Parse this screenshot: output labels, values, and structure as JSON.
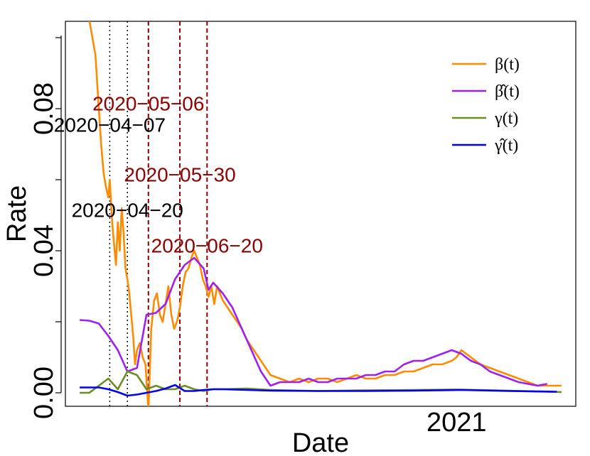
{
  "chart_data": {
    "type": "line",
    "xlabel": "Date",
    "ylabel": "Rate",
    "ylim": [
      0.0,
      0.1
    ],
    "yticks": [
      0.0,
      0.04,
      0.08
    ],
    "ytick_labels": [
      "0.00",
      "0.04",
      "0.08"
    ],
    "xticks": [
      {
        "value": 2020.99,
        "label": "2021"
      }
    ],
    "grid": false,
    "legend_position": "top-right",
    "annotations": [
      {
        "label": "2020−04−07",
        "x": 2020.263,
        "color": "#000000",
        "linestyle": "dotted",
        "text_y": 0.0735
      },
      {
        "label": "2020−04−20",
        "x": 2020.3,
        "color": "#000000",
        "linestyle": "dotted",
        "text_y": 0.0495
      },
      {
        "label": "2020−05−06",
        "x": 2020.344,
        "color": "#8b0000",
        "linestyle": "dashed",
        "text_y": 0.0795
      },
      {
        "label": "2020−05−30",
        "x": 2020.41,
        "color": "#8b0000",
        "linestyle": "dashed",
        "text_y": 0.0595
      },
      {
        "label": "2020−06−20",
        "x": 2020.467,
        "color": "#8b0000",
        "linestyle": "dashed",
        "text_y": 0.0395
      }
    ],
    "series": [
      {
        "name": "β(t)",
        "color": "#ff8c00",
        "x": [
          2020.22,
          2020.233,
          2020.24,
          2020.245,
          2020.25,
          2020.255,
          2020.26,
          2020.263,
          2020.268,
          2020.272,
          2020.276,
          2020.28,
          2020.284,
          2020.288,
          2020.292,
          2020.296,
          2020.3,
          2020.304,
          2020.308,
          2020.312,
          2020.316,
          2020.32,
          2020.326,
          2020.332,
          2020.338,
          2020.344,
          2020.35,
          2020.356,
          2020.362,
          2020.368,
          2020.374,
          2020.38,
          2020.386,
          2020.392,
          2020.398,
          2020.404,
          2020.41,
          2020.416,
          2020.422,
          2020.428,
          2020.434,
          2020.44,
          2020.446,
          2020.452,
          2020.458,
          2020.464,
          2020.47,
          2020.476,
          2020.482,
          2020.488,
          2020.494,
          2020.5,
          2020.51,
          2020.52,
          2020.53,
          2020.54,
          2020.55,
          2020.56,
          2020.57,
          2020.58,
          2020.59,
          2020.6,
          2020.62,
          2020.64,
          2020.66,
          2020.68,
          2020.7,
          2020.72,
          2020.74,
          2020.76,
          2020.78,
          2020.8,
          2020.82,
          2020.84,
          2020.86,
          2020.88,
          2020.9,
          2020.92,
          2020.94,
          2020.96,
          2020.98,
          2020.99,
          2021.0,
          2021.02,
          2021.04,
          2021.06,
          2021.08,
          2021.1,
          2021.12,
          2021.14,
          2021.16,
          2021.18,
          2021.21
        ],
        "values": [
          0.105,
          0.095,
          0.08,
          0.07,
          0.062,
          0.058,
          0.055,
          0.06,
          0.048,
          0.042,
          0.036,
          0.048,
          0.04,
          0.052,
          0.045,
          0.035,
          0.032,
          0.028,
          0.022,
          0.016,
          0.008,
          0.012,
          0.014,
          0.01,
          0.008,
          -0.005,
          0.018,
          0.026,
          0.028,
          0.022,
          0.02,
          0.025,
          0.03,
          0.022,
          0.018,
          0.02,
          0.024,
          0.03,
          0.034,
          0.035,
          0.038,
          0.04,
          0.038,
          0.036,
          0.032,
          0.03,
          0.027,
          0.03,
          0.025,
          0.03,
          0.028,
          0.026,
          0.024,
          0.022,
          0.02,
          0.018,
          0.015,
          0.013,
          0.011,
          0.009,
          0.007,
          0.005,
          0.004,
          0.003,
          0.004,
          0.003,
          0.004,
          0.004,
          0.003,
          0.004,
          0.005,
          0.004,
          0.004,
          0.005,
          0.005,
          0.006,
          0.006,
          0.007,
          0.008,
          0.008,
          0.009,
          0.01,
          0.012,
          0.01,
          0.008,
          0.007,
          0.006,
          0.005,
          0.004,
          0.003,
          0.002,
          0.002,
          0.002
        ]
      },
      {
        "name": "β̂(t)",
        "color": "#a020f0",
        "x": [
          2020.2,
          2020.22,
          2020.24,
          2020.26,
          2020.28,
          2020.3,
          2020.32,
          2020.34,
          2020.36,
          2020.38,
          2020.4,
          2020.42,
          2020.44,
          2020.46,
          2020.47,
          2020.48,
          2020.5,
          2020.52,
          2020.54,
          2020.56,
          2020.58,
          2020.6,
          2020.62,
          2020.64,
          2020.66,
          2020.68,
          2020.7,
          2020.72,
          2020.74,
          2020.76,
          2020.78,
          2020.8,
          2020.82,
          2020.84,
          2020.86,
          2020.88,
          2020.9,
          2020.92,
          2020.94,
          2020.96,
          2020.98,
          2021.0,
          2021.02,
          2021.04,
          2021.06,
          2021.08,
          2021.1,
          2021.12,
          2021.14,
          2021.16,
          2021.18
        ],
        "values": [
          0.0205,
          0.0203,
          0.0195,
          0.016,
          0.012,
          0.006,
          0.007,
          0.022,
          0.0225,
          0.025,
          0.032,
          0.036,
          0.038,
          0.035,
          0.029,
          0.031,
          0.028,
          0.024,
          0.018,
          0.012,
          0.006,
          0.002,
          0.003,
          0.003,
          0.003,
          0.004,
          0.003,
          0.003,
          0.004,
          0.004,
          0.004,
          0.005,
          0.005,
          0.006,
          0.006,
          0.008,
          0.009,
          0.009,
          0.01,
          0.011,
          0.012,
          0.011,
          0.009,
          0.008,
          0.006,
          0.005,
          0.004,
          0.003,
          0.0025,
          0.002,
          0.0025
        ]
      },
      {
        "name": "γ(t)",
        "color": "#6b8e23",
        "x": [
          2020.2,
          2020.22,
          2020.24,
          2020.26,
          2020.28,
          2020.3,
          2020.32,
          2020.34,
          2020.36,
          2020.38,
          2020.4,
          2020.42,
          2020.44,
          2020.46,
          2020.48,
          2020.5,
          2020.55,
          2020.6,
          2020.7,
          2020.8,
          2020.9,
          2021.0,
          2021.1,
          2021.21
        ],
        "values": [
          0.0,
          0.0,
          0.002,
          0.004,
          0.001,
          0.006,
          0.005,
          0.001,
          0.002,
          0.001,
          0.001,
          0.002,
          0.001,
          0.0005,
          0.001,
          0.001,
          0.0012,
          0.0008,
          0.0005,
          0.0007,
          0.0008,
          0.0009,
          0.0006,
          0.0002
        ]
      },
      {
        "name": "γ̂(t)",
        "color": "#0000ee",
        "x": [
          2020.2,
          2020.24,
          2020.26,
          2020.28,
          2020.3,
          2020.32,
          2020.34,
          2020.36,
          2020.38,
          2020.4,
          2020.42,
          2020.44,
          2020.46,
          2020.48,
          2020.5,
          2020.55,
          2020.6,
          2020.7,
          2020.8,
          2020.9,
          2021.0,
          2021.1,
          2021.2
        ],
        "values": [
          0.0015,
          0.0015,
          0.001,
          0.0002,
          -0.0008,
          -0.0005,
          0.0,
          0.0005,
          0.0012,
          0.0022,
          0.0005,
          0.0005,
          0.0008,
          0.001,
          0.001,
          0.0008,
          0.0006,
          0.0005,
          0.0005,
          0.0006,
          0.0008,
          0.0005,
          0.0003
        ]
      }
    ]
  }
}
